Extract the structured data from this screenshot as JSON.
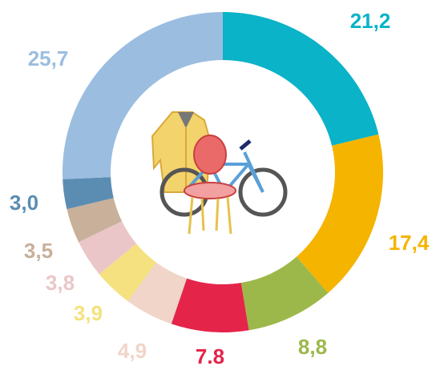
{
  "chart_data": {
    "type": "donut",
    "values": [
      21.2,
      17.4,
      8.8,
      7.8,
      4.9,
      3.9,
      3.8,
      3.5,
      3.0,
      25.7
    ],
    "value_labels": [
      "21,2",
      "17,4",
      "8,8",
      "7.8",
      "4,9",
      "3,9",
      "3,8",
      "3,5",
      "3,0",
      "25,7"
    ],
    "colors": [
      "#0ab3c7",
      "#f5b400",
      "#9cb84a",
      "#e5244a",
      "#f0d5c8",
      "#f5e17f",
      "#ebc6c8",
      "#c8b09a",
      "#5b8db3",
      "#9bbde0"
    ]
  }
}
